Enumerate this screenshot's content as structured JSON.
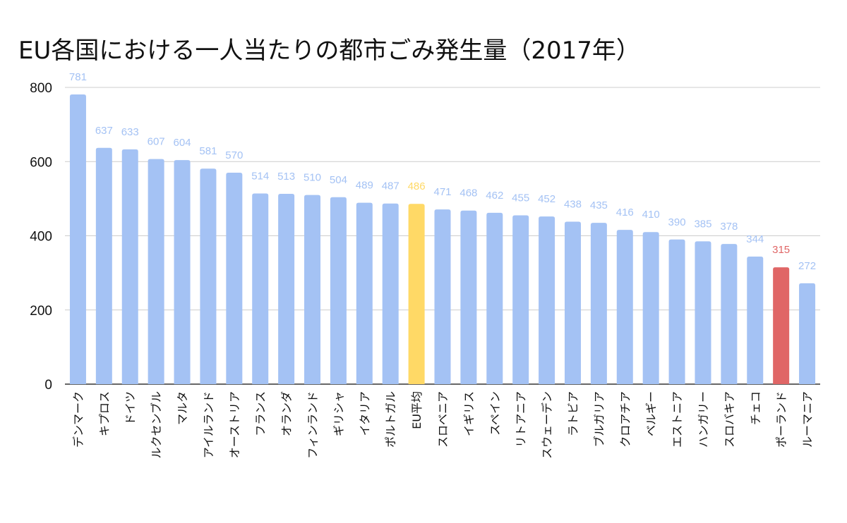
{
  "chart_data": {
    "type": "bar",
    "title": "EU各国における一人当たりの都市ごみ発生量（2017年）",
    "xlabel": "",
    "ylabel": "",
    "ylim": [
      0,
      800
    ],
    "yticks": [
      "0",
      "200",
      "400",
      "600",
      "800"
    ],
    "grid": true,
    "legend": "none",
    "categories": [
      "デンマーク",
      "キプロス",
      "ドイツ",
      "ルクセンブル",
      "マルタ",
      "アイルランド",
      "オーストリア",
      "フランス",
      "オランダ",
      "フィンランド",
      "ギリシャ",
      "イタリア",
      "ポルトガル",
      "EU平均",
      "スロベニア",
      "イギリス",
      "スペイン",
      "リトアニア",
      "スウェーデン",
      "ラトビア",
      "ブルガリア",
      "クロアチア",
      "ベルギー",
      "エストニア",
      "ハンガリー",
      "スロバキア",
      "チェコ",
      "ポーランド",
      "ルーマニア"
    ],
    "values": [
      781,
      637,
      633,
      607,
      604,
      581,
      570,
      514,
      513,
      510,
      504,
      489,
      487,
      486,
      471,
      468,
      462,
      455,
      452,
      438,
      435,
      416,
      410,
      390,
      385,
      378,
      344,
      315,
      272
    ],
    "value_labels": [
      "781",
      "637",
      "633",
      "607",
      "604",
      "581",
      "570",
      "514",
      "513",
      "510",
      "504",
      "489",
      "487",
      "486",
      "471",
      "468",
      "462",
      "455",
      "452",
      "438",
      "435",
      "416",
      "410",
      "390",
      "385",
      "378",
      "344",
      "315",
      "272"
    ],
    "colors": {
      "default_bar": "#a4c2f4",
      "default_label": "#a4c2f4",
      "eu_average_bar": "#ffd966",
      "eu_average_label": "#ffd966",
      "poland_bar": "#e06666",
      "poland_label": "#e06666",
      "gridline": "#cccccc",
      "axis": "#333333"
    },
    "highlight": {
      "EU平均": "eu_average",
      "ポーランド": "poland"
    }
  }
}
